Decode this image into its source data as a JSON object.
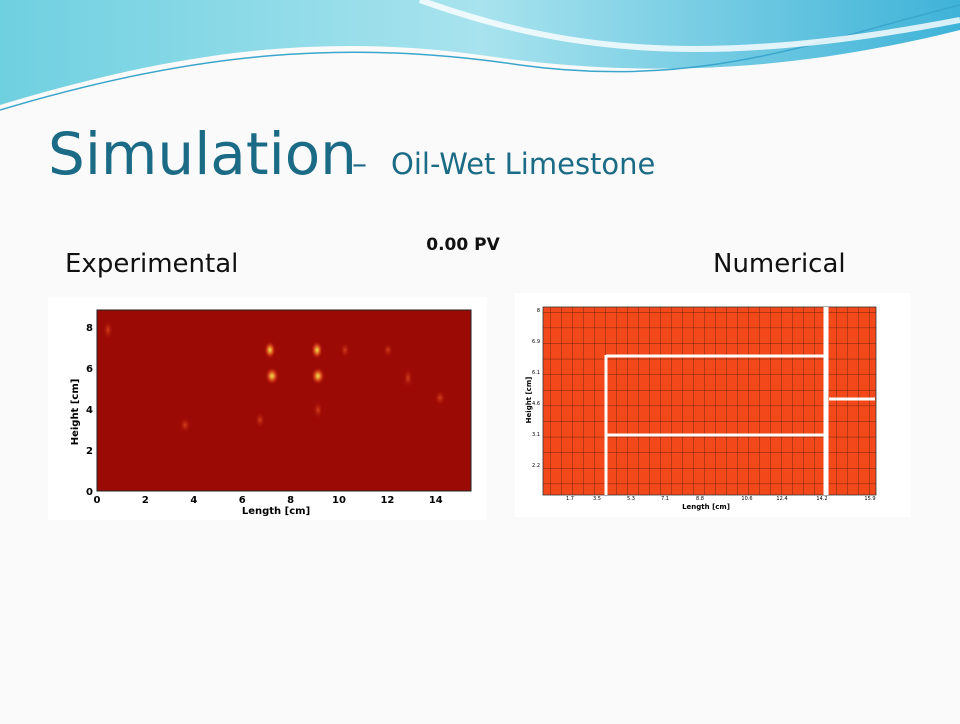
{
  "title": {
    "main": "Simulation",
    "dash": "–",
    "sub": "Oil-Wet Limestone"
  },
  "stage_label": "0.00 PV",
  "panels": {
    "left_label": "Experimental",
    "right_label": "Numerical",
    "experimental": {
      "ylabel": "Height [cm]",
      "xlabel": "Length [cm]",
      "xticks": [
        "0",
        "2",
        "4",
        "6",
        "8",
        "10",
        "12",
        "14"
      ],
      "yticks": [
        "0",
        "2",
        "4",
        "6",
        "8"
      ]
    },
    "numerical": {
      "ylabel": "Height [cm]",
      "xlabel": "Length [cm]",
      "xticks": [
        "1.7",
        "3.5",
        "5.3",
        "7.1",
        "8.8",
        "10.6",
        "12.4",
        "14.2",
        "15.9"
      ],
      "yticks": [
        "8",
        "6.9",
        "6.1",
        "4.6",
        "3.1",
        "2.2"
      ]
    }
  }
}
